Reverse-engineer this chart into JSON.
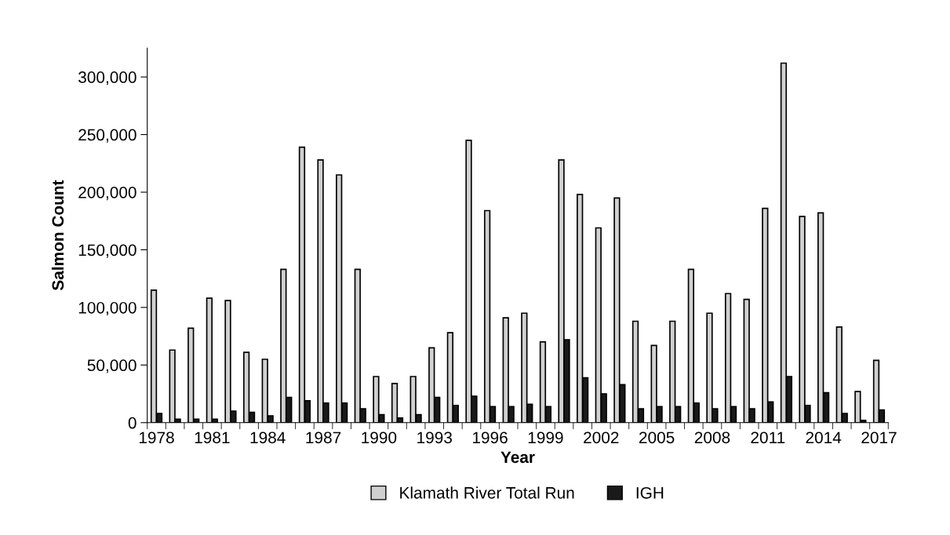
{
  "chart_data": {
    "type": "bar",
    "xlabel": "Year",
    "ylabel": "Salmon Count",
    "categories": [
      "1978",
      null,
      null,
      "1981",
      null,
      null,
      "1984",
      null,
      null,
      "1987",
      null,
      null,
      "1990",
      null,
      null,
      "1993",
      null,
      null,
      "1996",
      null,
      null,
      "1999",
      null,
      null,
      "2002",
      null,
      null,
      "2005",
      null,
      null,
      "2008",
      null,
      null,
      "2011",
      null,
      null,
      "2014",
      null,
      null,
      "2017"
    ],
    "series": [
      {
        "name": "Klamath River Total Run",
        "color": "#d0d0d0",
        "values": [
          115000,
          63000,
          82000,
          108000,
          106000,
          61000,
          55000,
          133000,
          239000,
          228000,
          215000,
          133000,
          40000,
          34000,
          40000,
          65000,
          78000,
          245000,
          184000,
          91000,
          95000,
          70000,
          228000,
          198000,
          169000,
          195000,
          88000,
          67000,
          88000,
          133000,
          95000,
          112000,
          107000,
          186000,
          312000,
          179000,
          182000,
          83000,
          27000,
          54000
        ]
      },
      {
        "name": "IGH",
        "color": "#1a1a1a",
        "values": [
          8000,
          3000,
          3000,
          3000,
          10000,
          9000,
          6000,
          22000,
          19000,
          17000,
          17000,
          12000,
          7000,
          4000,
          7000,
          22000,
          15000,
          23000,
          14000,
          14000,
          16000,
          14000,
          72000,
          39000,
          25000,
          33000,
          12000,
          14000,
          14000,
          17000,
          12000,
          14000,
          12000,
          18000,
          40000,
          15000,
          26000,
          8000,
          2000,
          11000
        ]
      }
    ],
    "ylim": [
      0,
      325000
    ],
    "yticks": [
      0,
      {
        "value": 50000,
        "label": "50,000"
      },
      {
        "value": 100000,
        "label": "100,000"
      },
      {
        "value": 150000,
        "label": "150,000"
      },
      {
        "value": 200000,
        "label": "200,000"
      },
      {
        "value": 250000,
        "label": "250,000"
      },
      {
        "value": 300000,
        "label": "300,000"
      }
    ],
    "grid": false,
    "legend": "bottom"
  }
}
